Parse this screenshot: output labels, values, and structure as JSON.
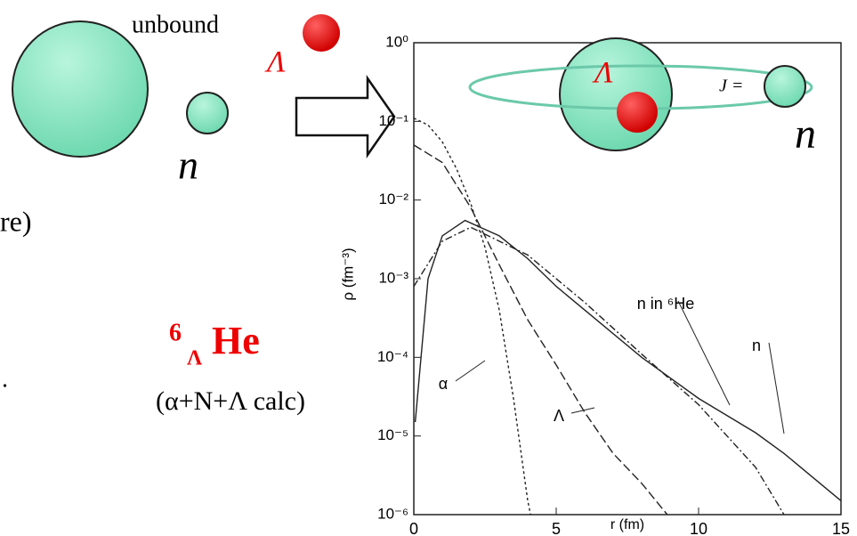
{
  "chart_data": {
    "type": "line",
    "x_label": "r (fm)",
    "y_label": "ρ (fm⁻³)",
    "log_y": true,
    "xlim": [
      0,
      15
    ],
    "ylim": [
      1e-06,
      1
    ],
    "xticks": [
      0,
      5,
      10,
      15
    ],
    "yticks": [
      {
        "value": 1,
        "label": "10⁰"
      },
      {
        "value": 0.1,
        "label": "10⁻¹"
      },
      {
        "value": 0.01,
        "label": "10⁻²"
      },
      {
        "value": 0.001,
        "label": "10⁻³"
      },
      {
        "value": 0.0001,
        "label": "10⁻⁴"
      },
      {
        "value": 1e-05,
        "label": "10⁻⁵"
      },
      {
        "value": 1e-06,
        "label": "10⁻⁶"
      }
    ],
    "series": [
      {
        "name": "α",
        "color": "#222",
        "dash": "3,3",
        "x": [
          0,
          0.5,
          1,
          1.5,
          2,
          2.5,
          3,
          3.5,
          4,
          4.1
        ],
        "values": [
          0.11,
          0.09,
          0.055,
          0.025,
          0.009,
          0.0025,
          0.0004,
          3e-05,
          1.5e-06,
          1e-06
        ]
      },
      {
        "name": "Λ",
        "color": "#222",
        "dash": "10,4",
        "x": [
          0,
          1,
          2,
          3,
          4,
          5,
          6,
          7,
          8,
          8.9
        ],
        "values": [
          0.05,
          0.03,
          0.008,
          0.0015,
          0.0003,
          8e-05,
          2e-05,
          6e-06,
          2.5e-06,
          1e-06
        ]
      },
      {
        "name": "n",
        "color": "#222",
        "dash": "none",
        "x": [
          0.05,
          0.5,
          1,
          1.8,
          3,
          4,
          5,
          6,
          8,
          10,
          12,
          13,
          15
        ],
        "values": [
          1.5e-05,
          0.001,
          0.0035,
          0.0055,
          0.0035,
          0.0018,
          0.0008,
          0.0004,
          0.0001,
          3e-05,
          1.1e-05,
          6e-06,
          1.5e-06
        ]
      },
      {
        "name": "n in ⁶He",
        "color": "#222",
        "dash": "8,3,2,3",
        "x": [
          0,
          1,
          2,
          4,
          6,
          8,
          10,
          11,
          12,
          13
        ],
        "values": [
          0.0008,
          0.003,
          0.0045,
          0.002,
          0.0005,
          0.00011,
          2.5e-05,
          1e-05,
          4e-06,
          1e-06
        ]
      }
    ]
  },
  "slide": {
    "unbound": "unbound",
    "lambda_top": "Λ",
    "n_left": "n",
    "fragment": "re)",
    "hyper_mass": "6",
    "hyper_sub": "Λ",
    "hyper_symbol": "He",
    "calc": "(α+N+Λ calc)",
    "dot": ".",
    "lambda_inset": "Λ",
    "j_label": "J =",
    "n_inset": "n"
  }
}
